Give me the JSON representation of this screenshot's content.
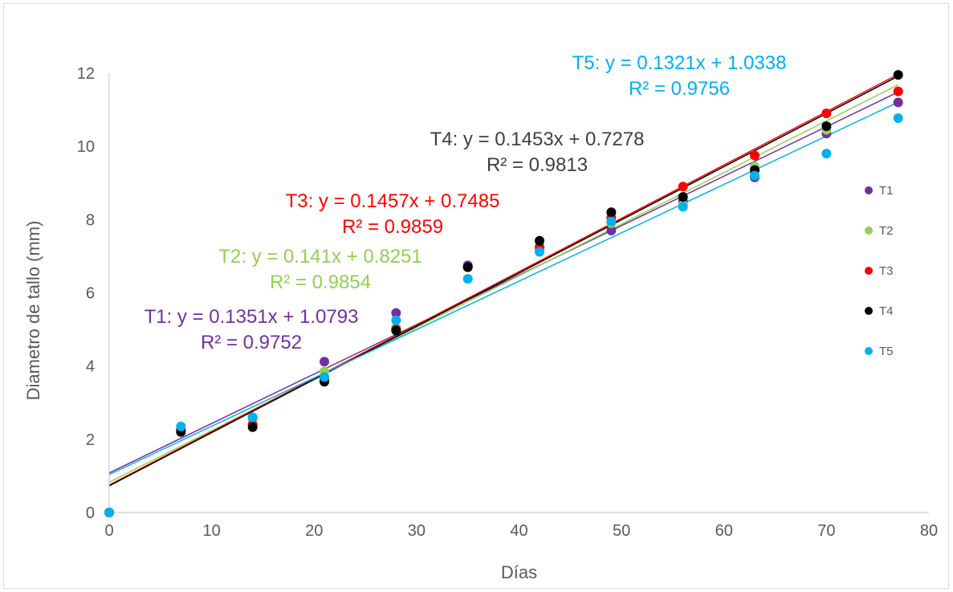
{
  "chart_data": {
    "type": "scatter",
    "title": "",
    "xlabel": "Días",
    "ylabel": "Diametro de tallo (mm)",
    "xlim": [
      0,
      80
    ],
    "ylim": [
      0,
      12
    ],
    "x_ticks": [
      0,
      10,
      20,
      30,
      40,
      50,
      60,
      70,
      80
    ],
    "y_ticks": [
      0,
      2,
      4,
      6,
      8,
      10,
      12
    ],
    "grid": false,
    "legend_position": "right",
    "x": [
      0,
      7,
      14,
      21,
      28,
      35,
      42,
      49,
      56,
      63,
      70,
      77
    ],
    "series": [
      {
        "name": "T1",
        "color": "#7030A0",
        "values": [
          0,
          2.28,
          2.6,
          4.12,
          5.45,
          6.75,
          7.25,
          7.7,
          8.5,
          9.15,
          10.35,
          11.2
        ],
        "trendline": {
          "slope": 0.1351,
          "intercept": 1.0793,
          "equation": "T1: y = 0.1351x + 1.0793",
          "r2": "R² = 0.9752"
        }
      },
      {
        "name": "T2",
        "color": "#92D050",
        "values": [
          0,
          2.3,
          2.55,
          3.85,
          5.05,
          6.7,
          7.2,
          7.9,
          8.4,
          9.45,
          10.45,
          11.5
        ],
        "trendline": {
          "slope": 0.141,
          "intercept": 0.8251,
          "equation": "T2: y = 0.141x + 0.8251",
          "r2": "R² = 0.9854"
        }
      },
      {
        "name": "T3",
        "color": "#FF0000",
        "values": [
          0,
          2.25,
          2.4,
          3.65,
          5.0,
          6.7,
          7.25,
          8.05,
          8.9,
          9.75,
          10.9,
          11.5
        ],
        "trendline": {
          "slope": 0.1457,
          "intercept": 0.7485,
          "equation": "T3: y = 0.1457x + 0.7485",
          "r2": "R² = 0.9859"
        }
      },
      {
        "name": "T4",
        "color": "#000000",
        "values": [
          0,
          2.2,
          2.33,
          3.57,
          4.97,
          6.7,
          7.42,
          8.2,
          8.62,
          9.35,
          10.55,
          11.95
        ],
        "trendline": {
          "slope": 0.1453,
          "intercept": 0.7278,
          "equation": "T4: y = 0.1453x + 0.7278",
          "r2": "R² = 0.9813"
        }
      },
      {
        "name": "T5",
        "color": "#00B0F0",
        "values": [
          0,
          2.35,
          2.6,
          3.7,
          5.25,
          6.38,
          7.12,
          7.95,
          8.35,
          9.2,
          9.8,
          10.77
        ],
        "trendline": {
          "slope": 0.1321,
          "intercept": 1.0338,
          "equation": "T5: y = 0.1321x + 1.0338",
          "r2": "R² = 0.9756"
        }
      }
    ],
    "equation_colors": {
      "T1": "#7030A0",
      "T2": "#92D050",
      "T3": "#FF0000",
      "T4": "#404040",
      "T5": "#00B0F0"
    }
  }
}
